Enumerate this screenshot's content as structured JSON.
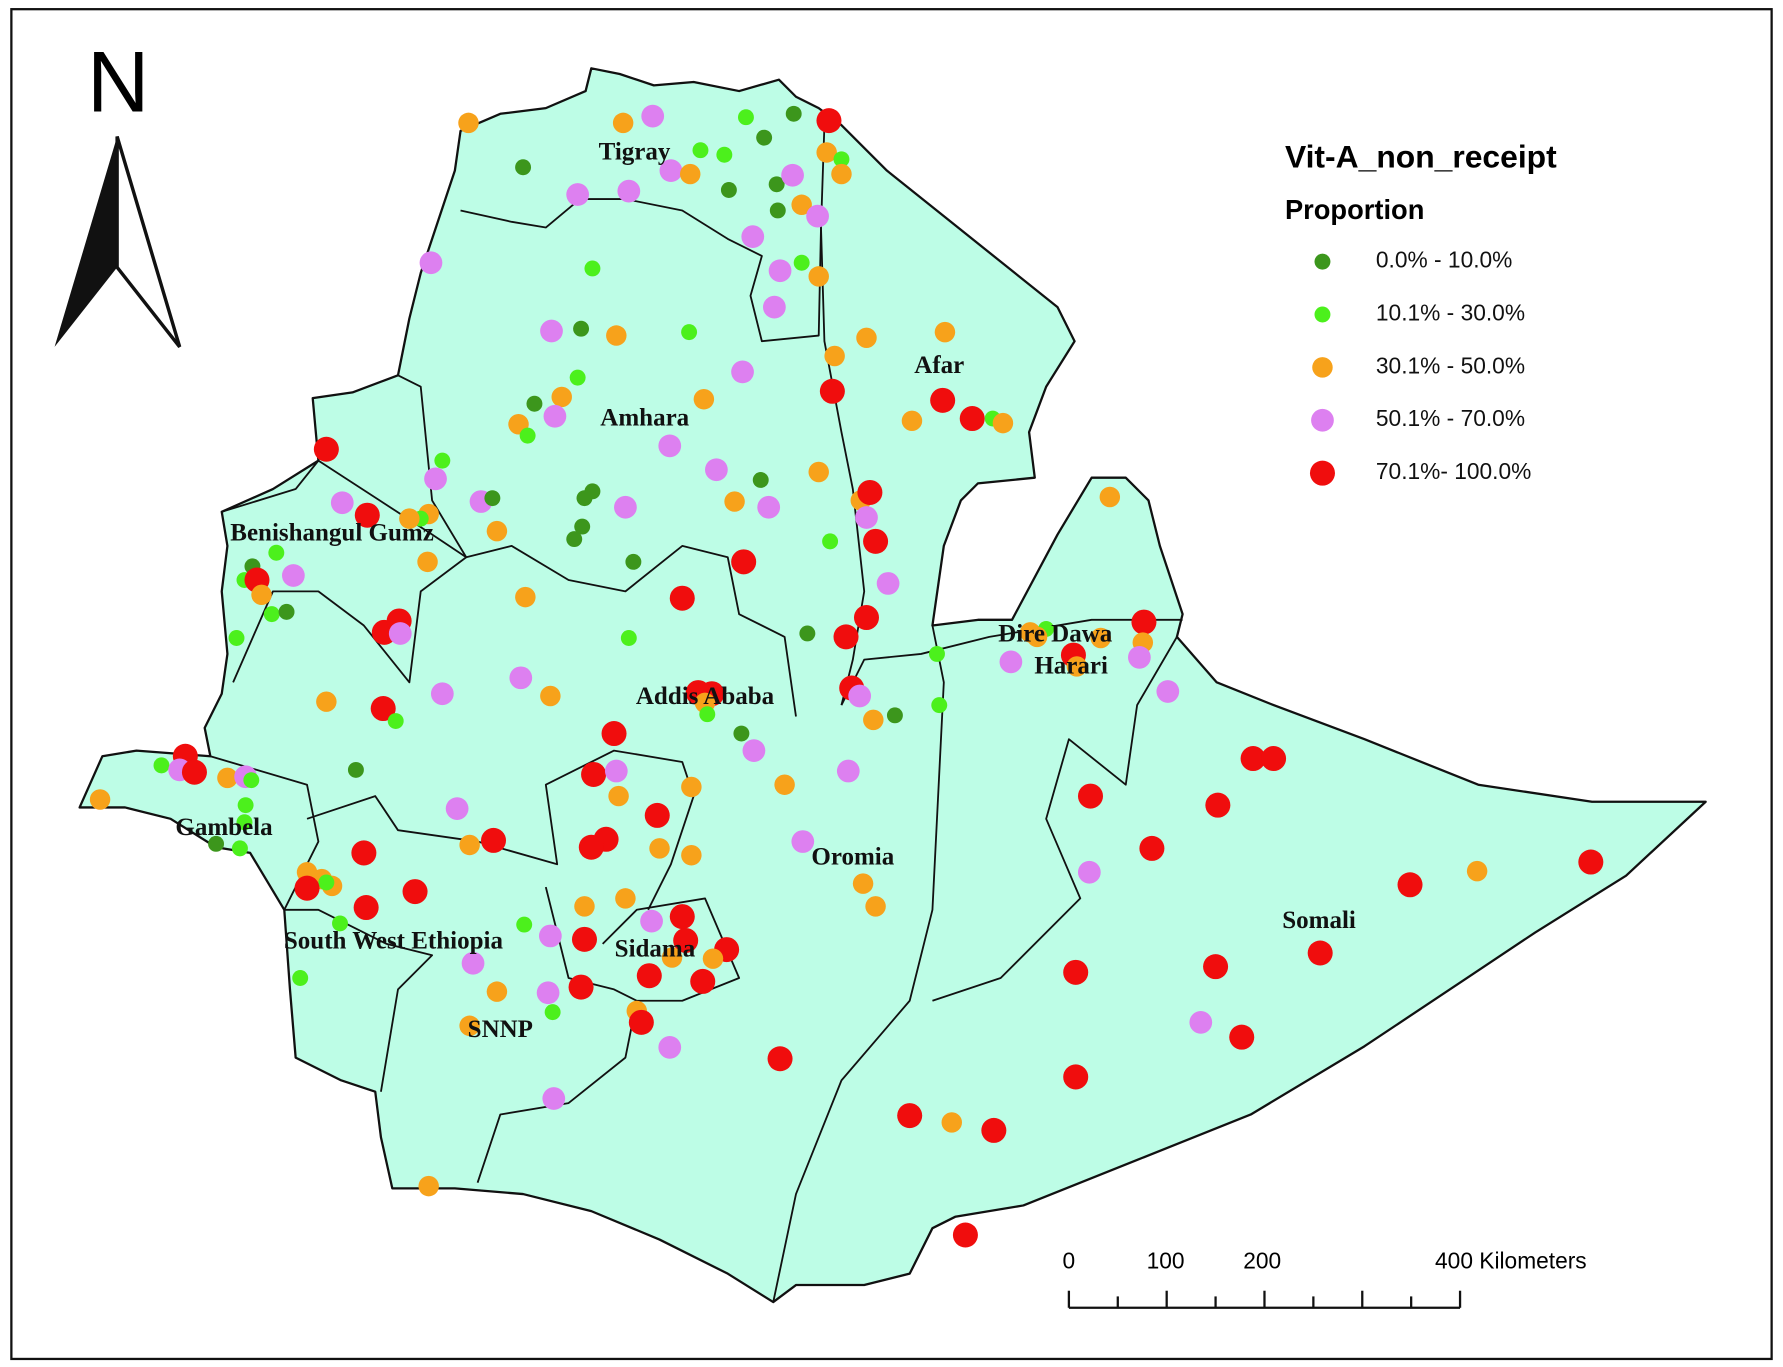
{
  "map": {
    "legend": {
      "title": "Vit-A_non_receipt",
      "subtitle": "Proportion",
      "items": [
        {
          "label": "0.0% - 10.0%",
          "color": "#3c961c"
        },
        {
          "label": "10.1% - 30.0%",
          "color": "#4cf01c"
        },
        {
          "label": "30.1% - 50.0%",
          "color": "#f7a21b"
        },
        {
          "label": "50.1% - 70.0%",
          "color": "#dd80f0"
        },
        {
          "label": "70.1%- 100.0%",
          "color": "#f00d0d"
        }
      ]
    },
    "north_label": "N",
    "regions": [
      "Tigray",
      "Amhara",
      "Afar",
      "Benishangul Gumz",
      "Dire Dawa",
      "Harari",
      "Addis Ababa",
      "Gambela",
      "Oromia",
      "South West Ethiopia",
      "Sidama",
      "SNNP",
      "Somali"
    ],
    "scale_bar": {
      "labels": [
        "0",
        "100",
        "200",
        "400 Kilometers"
      ]
    }
  }
}
